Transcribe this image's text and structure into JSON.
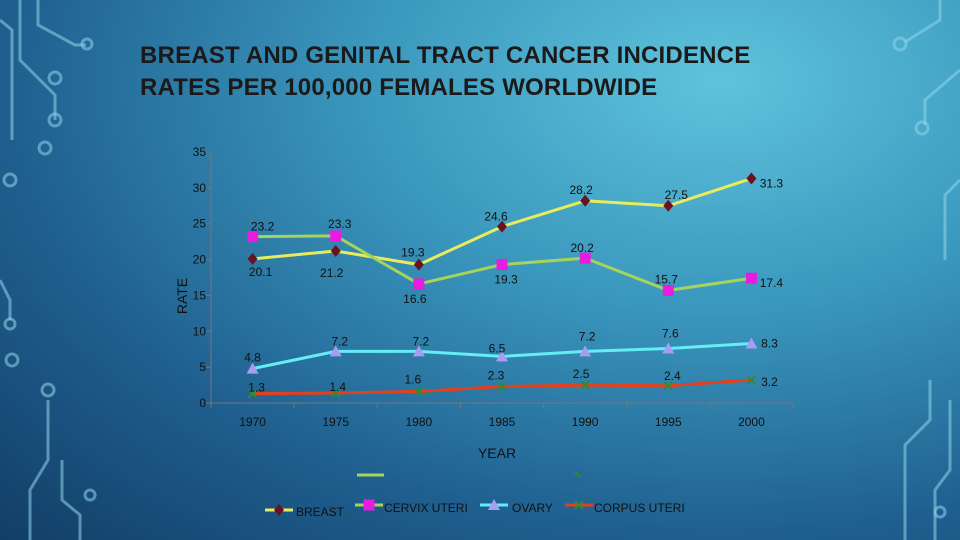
{
  "slide": {
    "title_line1": "BREAST AND GENITAL TRACT CANCER INCIDENCE",
    "title_line2": "RATES PER 100,000 FEMALES WORLDWIDE"
  },
  "colors": {
    "breast_line": "#e8ec5c",
    "breast_marker": "#6b1220",
    "cervix_line": "#a6d45a",
    "cervix_marker": "#e81ce0",
    "ovary_line": "#66ecf4",
    "ovary_marker": "#a99bf0",
    "corpus_line": "#e3401c",
    "corpus_marker": "#2f8a3a"
  },
  "chart_data": {
    "type": "line",
    "categories": [
      "1970",
      "1975",
      "1980",
      "1985",
      "1990",
      "1995",
      "2000"
    ],
    "xlabel": "YEAR",
    "ylabel": "RATE",
    "ylim": [
      0,
      35
    ],
    "yticks": [
      "0",
      "5",
      "10",
      "15",
      "20",
      "25",
      "30",
      "35"
    ],
    "grid": false,
    "legend_position": "bottom",
    "series": [
      {
        "name": "BREAST",
        "values": [
          20.1,
          21.2,
          19.3,
          24.6,
          28.2,
          27.5,
          31.3
        ],
        "labels": [
          "20.1",
          "21.2",
          "19.3",
          "24.6",
          "28.2",
          "27.5",
          "31.3"
        ],
        "marker": "diamond"
      },
      {
        "name": "CERVIX UTERI",
        "values": [
          23.2,
          23.3,
          16.6,
          19.3,
          20.2,
          15.7,
          17.4
        ],
        "labels": [
          "23.2",
          "23.3",
          "16.6",
          "19.3",
          "20.2",
          "15.7",
          "17.4"
        ],
        "marker": "square"
      },
      {
        "name": "OVARY",
        "values": [
          4.8,
          7.2,
          7.2,
          6.5,
          7.2,
          7.6,
          8.3
        ],
        "labels": [
          "4.8",
          "7.2",
          "7.2",
          "6.5",
          "7.2",
          "7.6",
          "8.3"
        ],
        "marker": "triangle"
      },
      {
        "name": "CORPUS UTERI",
        "values": [
          1.3,
          1.4,
          1.6,
          2.3,
          2.5,
          2.4,
          3.2
        ],
        "labels": [
          "1.3",
          "1.4",
          "1.6",
          "2.3",
          "2.5",
          "2.4",
          "3.2"
        ],
        "marker": "x"
      }
    ]
  }
}
